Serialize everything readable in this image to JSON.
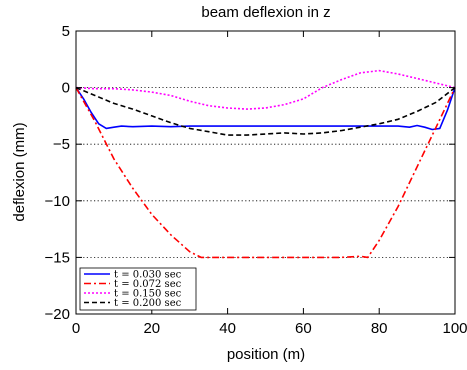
{
  "chart_data": {
    "type": "line",
    "title": "beam deflexion in z",
    "xlabel": "position (m)",
    "ylabel": "deflexion (mm)",
    "xlim": [
      0,
      100
    ],
    "ylim": [
      -20,
      5
    ],
    "xticks": [
      0,
      20,
      40,
      60,
      80,
      100
    ],
    "yticks": [
      5,
      0,
      -5,
      -10,
      -15,
      -20
    ],
    "xtick_labels": [
      "0",
      "20",
      "40",
      "60",
      "80",
      "100"
    ],
    "ytick_labels": [
      "5",
      "0",
      "−5",
      "−10",
      "−15",
      "−20"
    ],
    "grid": "horizontal dotted",
    "legend_position": "bottom-left",
    "series": [
      {
        "name": "t = 0.030 sec",
        "color": "#0000ff",
        "style": "solid",
        "x": [
          0,
          2,
          4,
          6,
          8,
          10,
          12,
          15,
          20,
          25,
          30,
          35,
          40,
          45,
          50,
          55,
          60,
          65,
          70,
          75,
          80,
          85,
          88,
          90,
          92,
          94,
          96,
          98,
          100
        ],
        "y": [
          0,
          -1.0,
          -2.2,
          -3.2,
          -3.6,
          -3.5,
          -3.4,
          -3.45,
          -3.4,
          -3.45,
          -3.4,
          -3.4,
          -3.4,
          -3.4,
          -3.4,
          -3.4,
          -3.4,
          -3.4,
          -3.4,
          -3.4,
          -3.4,
          -3.4,
          -3.5,
          -3.35,
          -3.5,
          -3.7,
          -3.6,
          -2.0,
          0
        ]
      },
      {
        "name": "t = 0.072 sec",
        "color": "#ff0000",
        "style": "dashdot",
        "x": [
          0,
          5,
          10,
          15,
          20,
          25,
          30,
          33,
          35,
          40,
          50,
          60,
          70,
          75,
          77,
          80,
          85,
          90,
          95,
          100
        ],
        "y": [
          0,
          -3.0,
          -6.3,
          -8.9,
          -11.2,
          -13.0,
          -14.5,
          -15.0,
          -15.0,
          -15.0,
          -15.0,
          -15.0,
          -15.0,
          -14.9,
          -15.0,
          -13.5,
          -10.5,
          -7.0,
          -3.5,
          0
        ]
      },
      {
        "name": "t = 0.150 sec",
        "color": "#ff00ff",
        "style": "dotted",
        "x": [
          0,
          5,
          10,
          15,
          20,
          25,
          30,
          35,
          40,
          45,
          50,
          55,
          60,
          65,
          70,
          75,
          80,
          85,
          90,
          95,
          100
        ],
        "y": [
          0,
          -0.1,
          -0.1,
          -0.2,
          -0.4,
          -0.7,
          -1.2,
          -1.6,
          -1.8,
          -1.9,
          -1.8,
          -1.5,
          -1.0,
          0.0,
          0.7,
          1.3,
          1.5,
          1.2,
          0.8,
          0.4,
          0
        ]
      },
      {
        "name": "t = 0.200 sec",
        "color": "#000000",
        "style": "dashed",
        "x": [
          0,
          5,
          10,
          15,
          20,
          25,
          30,
          35,
          40,
          45,
          50,
          55,
          60,
          65,
          70,
          75,
          80,
          85,
          90,
          95,
          100
        ],
        "y": [
          0,
          -0.7,
          -1.4,
          -1.9,
          -2.5,
          -3.1,
          -3.6,
          -3.9,
          -4.2,
          -4.2,
          -4.1,
          -4.0,
          -4.1,
          -4.0,
          -3.8,
          -3.5,
          -3.2,
          -2.8,
          -2.1,
          -1.3,
          0
        ]
      }
    ]
  }
}
